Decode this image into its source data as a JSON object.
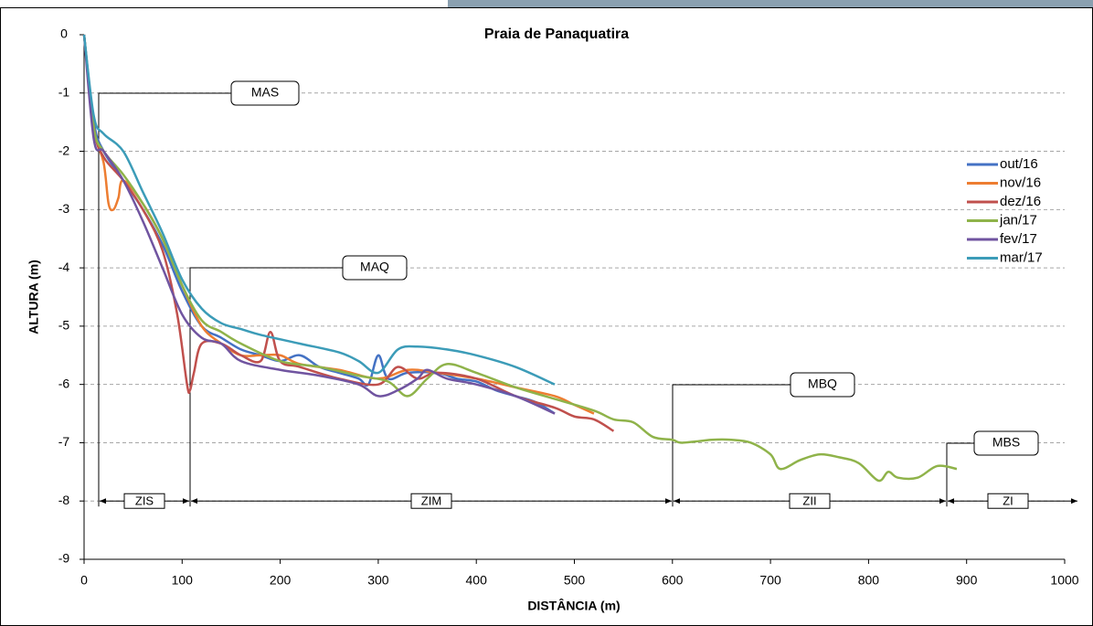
{
  "chart_data": {
    "type": "line",
    "title": "Praia de Panaquatira",
    "xlabel": "DISTÂNCIA (m)",
    "ylabel": "ALTURA (m)",
    "xlim": [
      0,
      1000
    ],
    "xticks": [
      0,
      100,
      200,
      300,
      400,
      500,
      600,
      700,
      800,
      900,
      1000
    ],
    "ylim": [
      -9,
      0
    ],
    "yticks": [
      0,
      -1,
      -2,
      -3,
      -4,
      -5,
      -6,
      -7,
      -8,
      -9
    ],
    "grid": true,
    "legend": "right",
    "annotations": [
      "MAS",
      "MAQ",
      "MBQ",
      "MBS"
    ],
    "zones": [
      "ZIS",
      "ZIM",
      "ZII",
      "ZI"
    ],
    "series": [
      {
        "name": "out/16",
        "color": "#4472c4",
        "x": [
          0,
          10,
          20,
          40,
          60,
          80,
          100,
          120,
          140,
          160,
          180,
          200,
          220,
          240,
          260,
          280,
          290,
          300,
          310,
          330,
          360,
          380,
          400,
          420,
          440,
          460,
          480
        ],
        "values": [
          0,
          -1.5,
          -2.0,
          -2.5,
          -3.0,
          -3.6,
          -4.4,
          -5.0,
          -5.2,
          -5.4,
          -5.5,
          -5.6,
          -5.5,
          -5.7,
          -5.8,
          -5.9,
          -6.0,
          -5.5,
          -5.9,
          -5.8,
          -5.8,
          -5.9,
          -5.95,
          -6.1,
          -6.2,
          -6.3,
          -6.5
        ]
      },
      {
        "name": "nov/16",
        "color": "#ed7d31",
        "x": [
          0,
          10,
          20,
          25,
          30,
          35,
          40,
          60,
          80,
          100,
          120,
          140,
          160,
          180,
          200,
          220,
          260,
          300,
          330,
          360,
          400,
          440,
          480,
          500,
          520
        ],
        "values": [
          0,
          -1.6,
          -2.2,
          -2.9,
          -3.0,
          -2.8,
          -2.5,
          -2.9,
          -3.5,
          -4.3,
          -5.0,
          -5.3,
          -5.5,
          -5.5,
          -5.5,
          -5.65,
          -5.75,
          -5.9,
          -5.75,
          -5.8,
          -5.9,
          -6.05,
          -6.2,
          -6.35,
          -6.5
        ]
      },
      {
        "name": "dez/16",
        "color": "#c0504d",
        "x": [
          0,
          10,
          20,
          40,
          60,
          80,
          95,
          105,
          108,
          112,
          120,
          140,
          160,
          180,
          190,
          200,
          220,
          260,
          300,
          320,
          340,
          360,
          400,
          440,
          480,
          500,
          520,
          540
        ],
        "values": [
          0,
          -1.6,
          -2.1,
          -2.5,
          -3.0,
          -3.7,
          -4.8,
          -6.0,
          -6.1,
          -5.8,
          -5.3,
          -5.3,
          -5.5,
          -5.6,
          -5.1,
          -5.6,
          -5.7,
          -5.9,
          -6.0,
          -5.7,
          -5.9,
          -5.8,
          -5.9,
          -6.2,
          -6.4,
          -6.55,
          -6.6,
          -6.8
        ]
      },
      {
        "name": "jan/17",
        "color": "#8fb34a",
        "x": [
          0,
          10,
          20,
          40,
          60,
          80,
          100,
          120,
          140,
          160,
          200,
          240,
          280,
          310,
          330,
          350,
          370,
          400,
          440,
          480,
          520,
          540,
          560,
          580,
          600,
          610,
          640,
          660,
          680,
          700,
          710,
          730,
          750,
          770,
          790,
          810,
          820,
          830,
          850,
          870,
          890
        ],
        "values": [
          0,
          -1.6,
          -2.0,
          -2.4,
          -2.9,
          -3.5,
          -4.3,
          -4.9,
          -5.1,
          -5.3,
          -5.6,
          -5.7,
          -5.85,
          -5.95,
          -6.2,
          -5.9,
          -5.65,
          -5.8,
          -6.05,
          -6.25,
          -6.45,
          -6.6,
          -6.65,
          -6.9,
          -6.95,
          -7.0,
          -6.95,
          -6.95,
          -7.0,
          -7.2,
          -7.45,
          -7.3,
          -7.2,
          -7.25,
          -7.35,
          -7.65,
          -7.5,
          -7.6,
          -7.6,
          -7.4,
          -7.45
        ]
      },
      {
        "name": "fev/17",
        "color": "#7054a0",
        "x": [
          0,
          10,
          20,
          40,
          60,
          80,
          100,
          120,
          140,
          160,
          200,
          240,
          280,
          300,
          320,
          340,
          350,
          370,
          400,
          440,
          480
        ],
        "values": [
          0,
          -1.8,
          -2.0,
          -2.5,
          -3.2,
          -4.0,
          -4.8,
          -5.2,
          -5.3,
          -5.6,
          -5.75,
          -5.85,
          -6.0,
          -6.2,
          -6.1,
          -5.9,
          -5.75,
          -5.9,
          -6.0,
          -6.2,
          -6.5
        ]
      },
      {
        "name": "mar/17",
        "color": "#3c9cb8",
        "x": [
          0,
          10,
          20,
          40,
          60,
          80,
          100,
          120,
          140,
          160,
          180,
          220,
          260,
          280,
          300,
          320,
          340,
          370,
          400,
          440,
          480
        ],
        "values": [
          0,
          -1.4,
          -1.7,
          -2.0,
          -2.7,
          -3.4,
          -4.2,
          -4.7,
          -4.95,
          -5.05,
          -5.15,
          -5.3,
          -5.45,
          -5.6,
          -5.8,
          -5.4,
          -5.35,
          -5.4,
          -5.5,
          -5.7,
          -6.0
        ]
      }
    ]
  }
}
